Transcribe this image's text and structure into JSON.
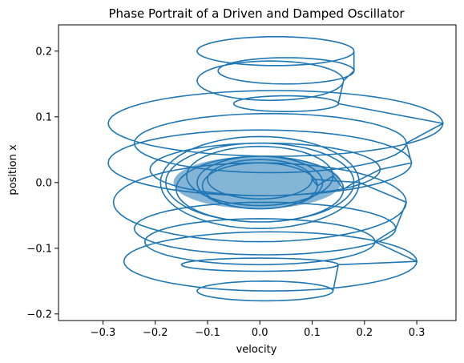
{
  "chart_data": {
    "type": "line",
    "title": "Phase Portrait of a Driven and Damped Oscillator",
    "xlabel": "velocity",
    "ylabel": "position x",
    "xlim": [
      -0.385,
      0.375
    ],
    "ylim": [
      -0.21,
      0.24
    ],
    "xticks": [
      -0.3,
      -0.2,
      -0.1,
      0.0,
      0.1,
      0.2,
      0.3
    ],
    "xtick_labels": [
      "−0.3",
      "−0.2",
      "−0.1",
      "0.0",
      "0.1",
      "0.2",
      "0.3"
    ],
    "yticks": [
      -0.2,
      -0.1,
      0.0,
      0.1,
      0.2
    ],
    "ytick_labels": [
      "−0.2",
      "−0.1",
      "0.0",
      "0.1",
      "0.2"
    ],
    "grid": false,
    "legend": "none",
    "series_color": "#1f77b4",
    "series": [
      {
        "description_points": "approximate trajectory loops (velocity, position)",
        "x": [],
        "y": []
      }
    ]
  }
}
